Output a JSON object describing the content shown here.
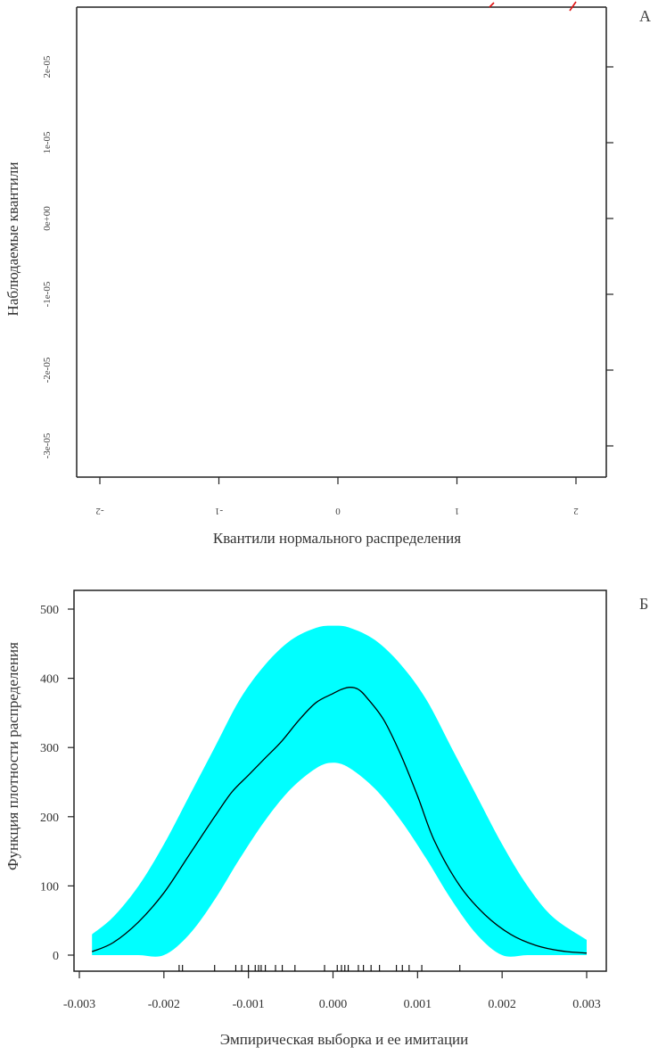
{
  "panels": {
    "a": {
      "label": "А"
    },
    "b": {
      "label": "Б"
    }
  },
  "chart_data": [
    {
      "type": "scatter",
      "panel": "А",
      "xlabel": "Квантили нормального распределения",
      "ylabel": "Наблюдаемые квантили",
      "x_ticks": [
        "-2",
        "-1",
        "0",
        "1",
        "2"
      ],
      "y_ticks": [
        "-3e-05",
        "-2e-05",
        "-1e-05",
        "0e+00",
        "1e-05",
        "2e-05"
      ],
      "xlim": [
        -2,
        2
      ],
      "reference_line_color": "#e01010",
      "series": []
    },
    {
      "type": "area",
      "panel": "Б",
      "xlabel": "Эмпирическая выборка и ее имитации",
      "ylabel": "Функция плотности распределения",
      "x_ticks": [
        "-0.003",
        "-0.002",
        "-0.001",
        "0.000",
        "0.001",
        "0.002",
        "0.003"
      ],
      "y_ticks": [
        "0",
        "100",
        "200",
        "300",
        "400",
        "500"
      ],
      "xlim": [
        -0.003,
        0.003
      ],
      "ylim": [
        0,
        500
      ],
      "band_color": "#00ffff",
      "line_color": "#000000",
      "density": {
        "x": [
          -0.00285,
          -0.0026,
          -0.0023,
          -0.002,
          -0.0017,
          -0.0014,
          -0.0012,
          -0.001,
          -0.0008,
          -0.0006,
          -0.0004,
          -0.0002,
          0.0,
          0.0001,
          0.0002,
          0.0003,
          0.0004,
          0.0006,
          0.0008,
          0.001,
          0.0012,
          0.0015,
          0.0018,
          0.0021,
          0.0024,
          0.0027,
          0.003
        ],
        "y": [
          5,
          18,
          48,
          90,
          145,
          200,
          235,
          260,
          285,
          310,
          340,
          365,
          378,
          384,
          387,
          384,
          372,
          340,
          290,
          230,
          165,
          100,
          58,
          30,
          14,
          6,
          3
        ]
      },
      "band": {
        "x": [
          -0.00285,
          -0.0026,
          -0.0023,
          -0.002,
          -0.0017,
          -0.0014,
          -0.0011,
          -0.0008,
          -0.0005,
          -0.0002,
          0.0,
          0.0002,
          0.0005,
          0.0008,
          0.0011,
          0.0014,
          0.0017,
          0.002,
          0.0023,
          0.0026,
          0.003
        ],
        "upper": [
          30,
          55,
          100,
          160,
          230,
          300,
          370,
          420,
          455,
          473,
          476,
          473,
          455,
          420,
          370,
          300,
          230,
          160,
          100,
          55,
          22
        ],
        "lower": [
          0,
          0,
          0,
          0,
          30,
          80,
          140,
          195,
          240,
          270,
          278,
          270,
          240,
          195,
          140,
          80,
          30,
          0,
          0,
          0,
          0
        ]
      },
      "rug": [
        -0.00182,
        -0.00178,
        -0.0014,
        -0.00115,
        -0.00108,
        -0.001,
        -0.00092,
        -0.00088,
        -0.00085,
        -0.0008,
        -0.00068,
        -0.0006,
        -0.00045,
        -0.0001,
        5e-05,
        0.0001,
        0.00014,
        0.00018,
        0.0003,
        0.00036,
        0.00045,
        0.00055,
        0.00075,
        0.00082,
        0.0009,
        0.00105,
        0.0015
      ]
    }
  ]
}
